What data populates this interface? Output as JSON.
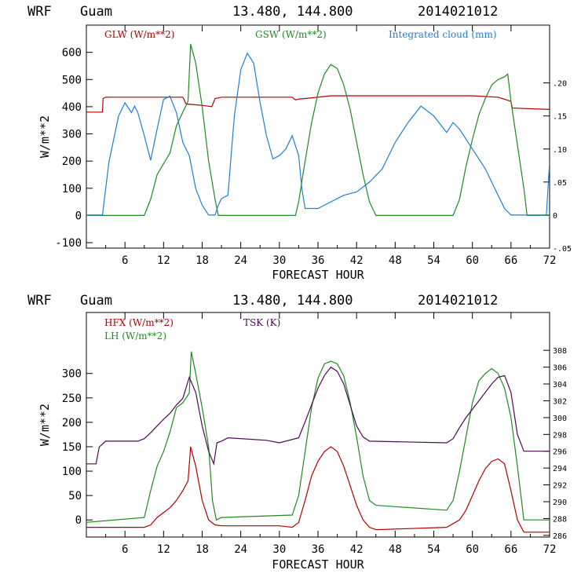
{
  "chart_data": [
    {
      "type": "line",
      "header": {
        "model": "WRF",
        "location": "Guam",
        "coords": "13.480, 144.800",
        "init": "2014021012"
      },
      "xlabel": "FORECAST HOUR",
      "ylabel": "W/m**2",
      "xlim": [
        0,
        72
      ],
      "ylim": [
        -120,
        700
      ],
      "y2lim": [
        -0.05,
        0.2875
      ],
      "x_ticks": [
        "6",
        "12",
        "18",
        "24",
        "30",
        "36",
        "42",
        "48",
        "54",
        "60",
        "66",
        "72"
      ],
      "y_ticks": [
        "-100",
        "0",
        "100",
        "200",
        "300",
        "400",
        "500",
        "600"
      ],
      "y2_ticks": [
        "-.05",
        "0",
        ".05",
        ".10",
        ".15",
        ".20"
      ],
      "series": [
        {
          "name": "GLW (W/m**2)",
          "color": "#b00000",
          "axis": "left",
          "points": [
            [
              0,
              380
            ],
            [
              2.5,
              380
            ],
            [
              2.6,
              430
            ],
            [
              3,
              435
            ],
            [
              15,
              435
            ],
            [
              15.5,
              410
            ],
            [
              18,
              405
            ],
            [
              19.5,
              400
            ],
            [
              20,
              430
            ],
            [
              21,
              435
            ],
            [
              32,
              435
            ],
            [
              32.5,
              425
            ],
            [
              33,
              428
            ],
            [
              34,
              430
            ],
            [
              38,
              440
            ],
            [
              42,
              440
            ],
            [
              60,
              440
            ],
            [
              64,
              435
            ],
            [
              66,
              420
            ],
            [
              66.2,
              395
            ],
            [
              72,
              390
            ]
          ]
        },
        {
          "name": "GSW (W/m**2)",
          "color": "#228822",
          "axis": "left",
          "points": [
            [
              0,
              0
            ],
            [
              9,
              0
            ],
            [
              10,
              60
            ],
            [
              11,
              150
            ],
            [
              12,
              190
            ],
            [
              13,
              230
            ],
            [
              14,
              330
            ],
            [
              15,
              380
            ],
            [
              15.8,
              420
            ],
            [
              16.2,
              630
            ],
            [
              17,
              560
            ],
            [
              18,
              400
            ],
            [
              19,
              200
            ],
            [
              20,
              60
            ],
            [
              20.5,
              0
            ],
            [
              32.5,
              0
            ],
            [
              33,
              50
            ],
            [
              34,
              200
            ],
            [
              35,
              340
            ],
            [
              36,
              450
            ],
            [
              37,
              520
            ],
            [
              38,
              555
            ],
            [
              39,
              540
            ],
            [
              40,
              480
            ],
            [
              41,
              390
            ],
            [
              42,
              270
            ],
            [
              43,
              150
            ],
            [
              44,
              50
            ],
            [
              45,
              0
            ],
            [
              57,
              0
            ],
            [
              58,
              60
            ],
            [
              59,
              180
            ],
            [
              60,
              280
            ],
            [
              61,
              370
            ],
            [
              62,
              430
            ],
            [
              63,
              480
            ],
            [
              64,
              500
            ],
            [
              65,
              510
            ],
            [
              65.5,
              520
            ],
            [
              66,
              420
            ],
            [
              67,
              260
            ],
            [
              68,
              100
            ],
            [
              68.5,
              0
            ],
            [
              72,
              0
            ]
          ]
        },
        {
          "name": "Integrated cloud (mm)",
          "color": "#1f7fd6",
          "axis": "right",
          "points": [
            [
              0,
              0
            ],
            [
              2.5,
              0
            ],
            [
              3.5,
              0.08
            ],
            [
              5,
              0.15
            ],
            [
              6,
              0.17
            ],
            [
              7,
              0.155
            ],
            [
              7.5,
              0.165
            ],
            [
              8,
              0.155
            ],
            [
              9,
              0.12
            ],
            [
              10,
              0.083
            ],
            [
              11,
              0.13
            ],
            [
              12,
              0.175
            ],
            [
              13,
              0.18
            ],
            [
              14,
              0.155
            ],
            [
              15,
              0.11
            ],
            [
              16,
              0.09
            ],
            [
              17,
              0.04
            ],
            [
              18,
              0.015
            ],
            [
              19,
              0
            ],
            [
              20,
              0
            ],
            [
              20.5,
              0.015
            ],
            [
              21,
              0.025
            ],
            [
              22,
              0.03
            ],
            [
              23,
              0.15
            ],
            [
              24,
              0.22
            ],
            [
              25,
              0.245
            ],
            [
              26,
              0.23
            ],
            [
              27,
              0.17
            ],
            [
              28,
              0.12
            ],
            [
              29,
              0.085
            ],
            [
              30,
              0.09
            ],
            [
              31,
              0.1
            ],
            [
              32,
              0.12
            ],
            [
              33,
              0.09
            ],
            [
              33.5,
              0.04
            ],
            [
              34,
              0.01
            ],
            [
              36,
              0.01
            ],
            [
              38,
              0.02
            ],
            [
              40,
              0.03
            ],
            [
              42,
              0.035
            ],
            [
              44,
              0.05
            ],
            [
              46,
              0.07
            ],
            [
              48,
              0.11
            ],
            [
              50,
              0.14
            ],
            [
              52,
              0.165
            ],
            [
              54,
              0.15
            ],
            [
              56,
              0.125
            ],
            [
              57,
              0.14
            ],
            [
              58,
              0.13
            ],
            [
              60,
              0.1
            ],
            [
              62,
              0.07
            ],
            [
              64,
              0.03
            ],
            [
              65,
              0.01
            ],
            [
              66,
              0
            ],
            [
              71.5,
              0
            ],
            [
              72,
              0.08
            ]
          ]
        }
      ]
    },
    {
      "type": "line",
      "header": {
        "model": "WRF",
        "location": "Guam",
        "coords": "13.480, 144.800",
        "init": "2014021012"
      },
      "xlabel": "FORECAST HOUR",
      "ylabel": "W/m**2",
      "xlim": [
        0,
        72
      ],
      "ylim": [
        -35,
        425
      ],
      "y2lim": [
        285.8,
        312.5
      ],
      "x_ticks": [
        "6",
        "12",
        "18",
        "24",
        "30",
        "36",
        "42",
        "48",
        "54",
        "60",
        "66",
        "72"
      ],
      "y_ticks": [
        "0",
        "50",
        "100",
        "150",
        "200",
        "250",
        "300"
      ],
      "y2_ticks": [
        "286",
        "288",
        "290",
        "292",
        "294",
        "296",
        "298",
        "300",
        "302",
        "304",
        "306",
        "308"
      ],
      "series": [
        {
          "name": "HFX (W/m**2)",
          "color": "#b00000",
          "axis": "left",
          "points": [
            [
              0,
              -15
            ],
            [
              9,
              -15
            ],
            [
              10,
              -10
            ],
            [
              11,
              5
            ],
            [
              12,
              15
            ],
            [
              13,
              25
            ],
            [
              14,
              40
            ],
            [
              15,
              60
            ],
            [
              15.8,
              80
            ],
            [
              16.2,
              150
            ],
            [
              17,
              110
            ],
            [
              18,
              40
            ],
            [
              19,
              0
            ],
            [
              20,
              -10
            ],
            [
              21,
              -12
            ],
            [
              30,
              -12
            ],
            [
              32,
              -15
            ],
            [
              33,
              -5
            ],
            [
              34,
              40
            ],
            [
              35,
              90
            ],
            [
              36,
              120
            ],
            [
              37,
              140
            ],
            [
              38,
              150
            ],
            [
              39,
              140
            ],
            [
              40,
              110
            ],
            [
              41,
              70
            ],
            [
              42,
              30
            ],
            [
              43,
              0
            ],
            [
              44,
              -15
            ],
            [
              45,
              -20
            ],
            [
              56,
              -15
            ],
            [
              58,
              0
            ],
            [
              59,
              20
            ],
            [
              60,
              50
            ],
            [
              61,
              80
            ],
            [
              62,
              105
            ],
            [
              63,
              120
            ],
            [
              64,
              125
            ],
            [
              65,
              115
            ],
            [
              66,
              60
            ],
            [
              67,
              0
            ],
            [
              68,
              -25
            ],
            [
              72,
              -25
            ]
          ]
        },
        {
          "name": "LH (W/m**2)",
          "color": "#228822",
          "axis": "left",
          "points": [
            [
              0,
              -5
            ],
            [
              9,
              5
            ],
            [
              10,
              60
            ],
            [
              11,
              110
            ],
            [
              12,
              140
            ],
            [
              13,
              180
            ],
            [
              14,
              230
            ],
            [
              15,
              240
            ],
            [
              16,
              260
            ],
            [
              16.3,
              345
            ],
            [
              17,
              300
            ],
            [
              18,
              230
            ],
            [
              19,
              150
            ],
            [
              19.6,
              40
            ],
            [
              20.2,
              0
            ],
            [
              21,
              5
            ],
            [
              32,
              10
            ],
            [
              33,
              50
            ],
            [
              34,
              140
            ],
            [
              35,
              230
            ],
            [
              36,
              290
            ],
            [
              37,
              320
            ],
            [
              38,
              325
            ],
            [
              39,
              320
            ],
            [
              40,
              295
            ],
            [
              41,
              240
            ],
            [
              42,
              170
            ],
            [
              43,
              90
            ],
            [
              44,
              40
            ],
            [
              45,
              30
            ],
            [
              56,
              20
            ],
            [
              57,
              40
            ],
            [
              58,
              100
            ],
            [
              59,
              170
            ],
            [
              60,
              240
            ],
            [
              61,
              285
            ],
            [
              62,
              300
            ],
            [
              63,
              310
            ],
            [
              64,
              300
            ],
            [
              65,
              270
            ],
            [
              66,
              210
            ],
            [
              67,
              110
            ],
            [
              68,
              0
            ],
            [
              72,
              0
            ]
          ]
        },
        {
          "name": "TSK (K)",
          "color": "#4b0a55",
          "axis": "right",
          "points": [
            [
              0,
              294.5
            ],
            [
              1.5,
              294.5
            ],
            [
              2,
              296.5
            ],
            [
              3,
              297.2
            ],
            [
              8,
              297.2
            ],
            [
              9,
              297.5
            ],
            [
              10,
              298.2
            ],
            [
              11,
              299
            ],
            [
              12,
              299.8
            ],
            [
              13,
              300.5
            ],
            [
              14,
              301.5
            ],
            [
              15,
              302.3
            ],
            [
              16,
              304.8
            ],
            [
              17,
              303
            ],
            [
              18,
              299
            ],
            [
              19,
              296
            ],
            [
              19.8,
              294.5
            ],
            [
              20.3,
              297
            ],
            [
              21,
              297.2
            ],
            [
              22,
              297.6
            ],
            [
              28,
              297.3
            ],
            [
              30,
              297.0
            ],
            [
              33,
              297.6
            ],
            [
              34,
              299.5
            ],
            [
              35,
              301.5
            ],
            [
              36,
              303.5
            ],
            [
              37,
              305
            ],
            [
              38,
              306
            ],
            [
              39,
              305.5
            ],
            [
              40,
              304
            ],
            [
              41,
              301.5
            ],
            [
              42,
              299
            ],
            [
              43,
              297.7
            ],
            [
              44,
              297.2
            ],
            [
              56,
              297.0
            ],
            [
              57,
              297.5
            ],
            [
              58,
              298.8
            ],
            [
              59,
              300
            ],
            [
              60,
              301
            ],
            [
              61,
              302
            ],
            [
              62,
              303
            ],
            [
              63,
              304
            ],
            [
              64,
              304.8
            ],
            [
              65,
              305
            ],
            [
              66,
              303
            ],
            [
              67,
              298
            ],
            [
              68,
              296
            ],
            [
              72,
              296
            ]
          ]
        }
      ]
    }
  ]
}
